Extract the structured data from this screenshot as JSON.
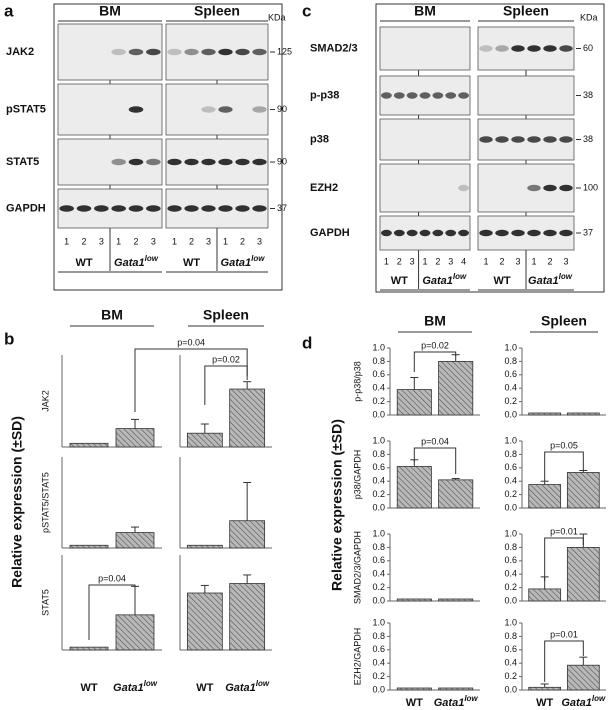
{
  "panels": [
    "a",
    "b",
    "c",
    "d"
  ],
  "blots": [
    {
      "tissues": [
        "BM",
        "Spleen"
      ],
      "unit": "KDa",
      "rows": [
        {
          "label": "JAK2",
          "marker": 125
        },
        {
          "label": "pSTAT5",
          "marker": 90
        },
        {
          "label": "STAT5",
          "marker": 90
        },
        {
          "label": "GAPDH",
          "marker": 37
        }
      ],
      "lanes": [
        [
          1,
          2,
          3
        ],
        [
          1,
          2,
          3
        ],
        [
          1,
          2,
          3
        ],
        [
          1,
          2,
          3
        ]
      ],
      "genotypes": [
        {
          "text": "WT"
        },
        {
          "text": "Gata1",
          "sup": "low"
        },
        {
          "text": "WT"
        },
        {
          "text": "Gata1",
          "sup": "low"
        }
      ]
    },
    {
      "tissues": [
        "BM",
        "Spleen"
      ],
      "unit": "KDa",
      "rows": [
        {
          "label": "SMAD2/3",
          "marker": 60
        },
        {
          "label": "p-p38",
          "marker": 38
        },
        {
          "label": "p38",
          "marker": 38
        },
        {
          "label": "EZH2",
          "marker": 100
        },
        {
          "label": "GAPDH",
          "marker": 37
        }
      ],
      "lanes": [
        [
          1,
          2,
          3
        ],
        [
          1,
          2,
          3,
          4
        ],
        [
          1,
          2,
          3
        ],
        [
          1,
          2,
          3
        ]
      ],
      "genotypes": [
        {
          "text": "WT"
        },
        {
          "text": "Gata1",
          "sup": "low"
        },
        {
          "text": "WT"
        },
        {
          "text": "Gata1",
          "sup": "low"
        }
      ]
    }
  ],
  "bar_panels": [
    {
      "tissues": [
        "BM",
        "Spleen"
      ],
      "ylabel": "Relative expression (±SD)",
      "x_labels": [
        {
          "text": "WT"
        },
        {
          "text": "Gata1",
          "sup": "low"
        },
        {
          "text": "WT"
        },
        {
          "text": "Gata1",
          "sup": "low"
        }
      ]
    },
    {
      "tissues": [
        "BM",
        "Spleen"
      ],
      "ylabel": "Relative expression (±SD)",
      "x_labels": [
        {
          "text": "WT"
        },
        {
          "text": "Gata1",
          "sup": "low"
        },
        {
          "text": "WT"
        },
        {
          "text": "Gata1",
          "sup": "low"
        }
      ]
    }
  ],
  "chart_data": [
    {
      "type": "bar",
      "ylabel": "JAK2",
      "values": [
        0.04,
        0.2
      ],
      "errors": [
        null,
        0.1
      ],
      "ylim": [
        0,
        1
      ],
      "annotations": [
        "p=0.04"
      ]
    },
    {
      "type": "bar",
      "values": [
        0.15,
        0.63
      ],
      "errors": [
        0.1,
        0.08
      ],
      "ylim": [
        0,
        1
      ],
      "annotations": [
        "p=0.02"
      ]
    },
    {
      "type": "bar",
      "ylabel": "pSTAT5/STAT5",
      "values": [
        0.03,
        0.17
      ],
      "errors": [
        null,
        0.06
      ],
      "ylim": [
        0,
        1
      ]
    },
    {
      "type": "bar",
      "values": [
        0.03,
        0.3
      ],
      "errors": [
        null,
        0.42
      ],
      "ylim": [
        0,
        1
      ]
    },
    {
      "type": "bar",
      "ylabel": "STAT5",
      "values": [
        0.03,
        0.37
      ],
      "errors": [
        null,
        0.3
      ],
      "ylim": [
        0,
        1
      ],
      "annotations": [
        "p=0.04"
      ]
    },
    {
      "type": "bar",
      "values": [
        0.6,
        0.7
      ],
      "errors": [
        0.08,
        0.09
      ],
      "ylim": [
        0,
        1
      ]
    },
    {
      "type": "bar",
      "ylabel": "p-p38/p38",
      "values": [
        0.38,
        0.8
      ],
      "errors": [
        0.18,
        0.1
      ],
      "ylim": [
        0,
        1
      ],
      "yticks": [
        {
          "value": 0,
          "label": "0.0"
        },
        {
          "value": 0.2,
          "label": "0.2"
        },
        {
          "value": 0.4,
          "label": "0.4"
        },
        {
          "value": 0.6,
          "label": "0.6"
        },
        {
          "value": 0.8,
          "label": "0.8"
        },
        {
          "value": 1,
          "label": "1.0"
        }
      ],
      "annotations": [
        "p=0.02"
      ]
    },
    {
      "type": "bar",
      "values": [
        0.03,
        0.03
      ],
      "errors": [
        null,
        null
      ],
      "ylim": [
        0,
        1
      ],
      "yticks": [
        {
          "value": 0,
          "label": "0.0"
        },
        {
          "value": 0.2,
          "label": "0.2"
        },
        {
          "value": 0.4,
          "label": "0.4"
        },
        {
          "value": 0.6,
          "label": "0.6"
        },
        {
          "value": 0.8,
          "label": "0.8"
        },
        {
          "value": 1,
          "label": "1.0"
        }
      ]
    },
    {
      "type": "bar",
      "ylabel": "p38/GAPDH",
      "values": [
        0.62,
        0.42
      ],
      "errors": [
        0.1,
        0.02
      ],
      "ylim": [
        0,
        1
      ],
      "yticks": [
        {
          "value": 0,
          "label": "0.0"
        },
        {
          "value": 0.2,
          "label": "0.2"
        },
        {
          "value": 0.4,
          "label": "0.4"
        },
        {
          "value": 0.6,
          "label": "0.6"
        },
        {
          "value": 0.8,
          "label": "0.8"
        },
        {
          "value": 1,
          "label": "1.0"
        }
      ],
      "annotations": [
        "p=0.04"
      ]
    },
    {
      "type": "bar",
      "values": [
        0.35,
        0.53
      ],
      "errors": [
        0.05,
        0.03
      ],
      "ylim": [
        0,
        1
      ],
      "yticks": [
        {
          "value": 0,
          "label": "0.0"
        },
        {
          "value": 0.2,
          "label": "0.2"
        },
        {
          "value": 0.4,
          "label": "0.4"
        },
        {
          "value": 0.6,
          "label": "0.6"
        },
        {
          "value": 0.8,
          "label": "0.8"
        },
        {
          "value": 1,
          "label": "1.0"
        }
      ],
      "annotations": [
        "p=0.05"
      ]
    },
    {
      "type": "bar",
      "ylabel": "SMAD2/3/GAPDH",
      "values": [
        0.03,
        0.03
      ],
      "errors": [
        null,
        null
      ],
      "ylim": [
        0,
        1
      ],
      "yticks": [
        {
          "value": 0,
          "label": "0.0"
        },
        {
          "value": 0.2,
          "label": "0.2"
        },
        {
          "value": 0.4,
          "label": "0.4"
        },
        {
          "value": 0.6,
          "label": "0.6"
        },
        {
          "value": 0.8,
          "label": "0.8"
        },
        {
          "value": 1,
          "label": "1.0"
        }
      ]
    },
    {
      "type": "bar",
      "values": [
        0.18,
        0.8
      ],
      "errors": [
        0.18,
        0.2
      ],
      "ylim": [
        0,
        1
      ],
      "yticks": [
        {
          "value": 0,
          "label": "0.0"
        },
        {
          "value": 0.2,
          "label": "0.2"
        },
        {
          "value": 0.4,
          "label": "0.4"
        },
        {
          "value": 0.6,
          "label": "0.6"
        },
        {
          "value": 0.8,
          "label": "0.8"
        },
        {
          "value": 1,
          "label": "1.0"
        }
      ],
      "annotations": [
        "p=0.01"
      ]
    },
    {
      "type": "bar",
      "ylabel": "EZH2/GAPDH",
      "values": [
        0.03,
        0.03
      ],
      "errors": [
        null,
        null
      ],
      "ylim": [
        0,
        1
      ],
      "yticks": [
        {
          "value": 0,
          "label": "0.0"
        },
        {
          "value": 0.2,
          "label": "0.2"
        },
        {
          "value": 0.4,
          "label": "0.4"
        },
        {
          "value": 0.6,
          "label": "0.6"
        },
        {
          "value": 0.8,
          "label": "0.8"
        },
        {
          "value": 1,
          "label": "1.0"
        }
      ]
    },
    {
      "type": "bar",
      "values": [
        0.04,
        0.37
      ],
      "errors": [
        0.05,
        0.12
      ],
      "ylim": [
        0,
        1
      ],
      "yticks": [
        {
          "value": 0,
          "label": "0.0"
        },
        {
          "value": 0.2,
          "label": "0.2"
        },
        {
          "value": 0.4,
          "label": "0.4"
        },
        {
          "value": 0.6,
          "label": "0.6"
        },
        {
          "value": 0.8,
          "label": "0.8"
        },
        {
          "value": 1,
          "label": "1.0"
        }
      ],
      "annotations": [
        "p=0.01"
      ]
    }
  ]
}
